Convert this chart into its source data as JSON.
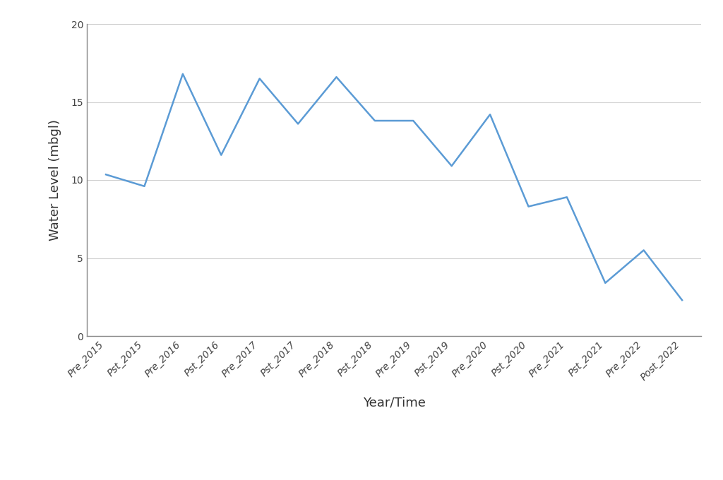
{
  "x_labels": [
    "Pre_2015",
    "Pst_2015",
    "Pre_2016",
    "Pst_2016",
    "Pre_2017",
    "Pst_2017",
    "Pre_2018",
    "Pst_2018",
    "Pre_2019",
    "Pst_2019",
    "Pre_2020",
    "Pst_2020",
    "Pre_2021",
    "Pst_2021",
    "Pre_2022",
    "Post_2022"
  ],
  "y_values": [
    10.35,
    9.6,
    16.8,
    11.6,
    16.5,
    13.6,
    16.6,
    13.8,
    13.8,
    10.9,
    14.2,
    8.3,
    8.9,
    3.4,
    5.5,
    2.3
  ],
  "line_color": "#5B9BD5",
  "line_width": 1.8,
  "xlabel": "Year/Time",
  "ylabel": "Water Level (mbgl)",
  "ylim": [
    0,
    20
  ],
  "yticks": [
    0,
    5,
    10,
    15,
    20
  ],
  "background_color": "#ffffff",
  "grid_color": "#d0d0d0",
  "xlabel_fontsize": 13,
  "ylabel_fontsize": 13,
  "tick_label_fontsize": 10,
  "tick_label_color": "#444444",
  "spine_color": "#888888"
}
